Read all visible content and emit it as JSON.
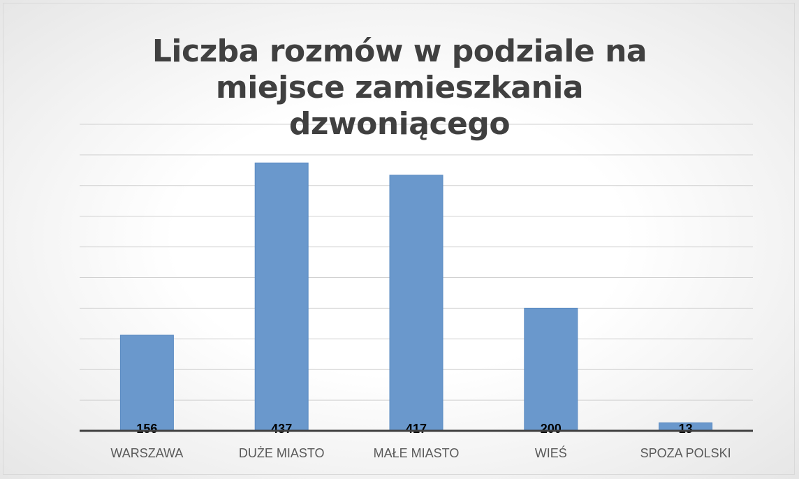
{
  "chart_data": {
    "type": "bar",
    "title": "Liczba rozmów w podziale na miejsce zamieszkania dzwoniącego",
    "categories": [
      "WARSZAWA",
      "DUŻE MIASTO",
      "MAŁE MIASTO",
      "WIEŚ",
      "SPOZA POLSKI"
    ],
    "values": [
      156,
      437,
      417,
      200,
      13
    ],
    "color": "#6a98cc",
    "ylim": [
      0,
      500
    ],
    "yticks": [
      0,
      50,
      100,
      150,
      200,
      250,
      300,
      350,
      400,
      450,
      500
    ],
    "grid": true
  }
}
